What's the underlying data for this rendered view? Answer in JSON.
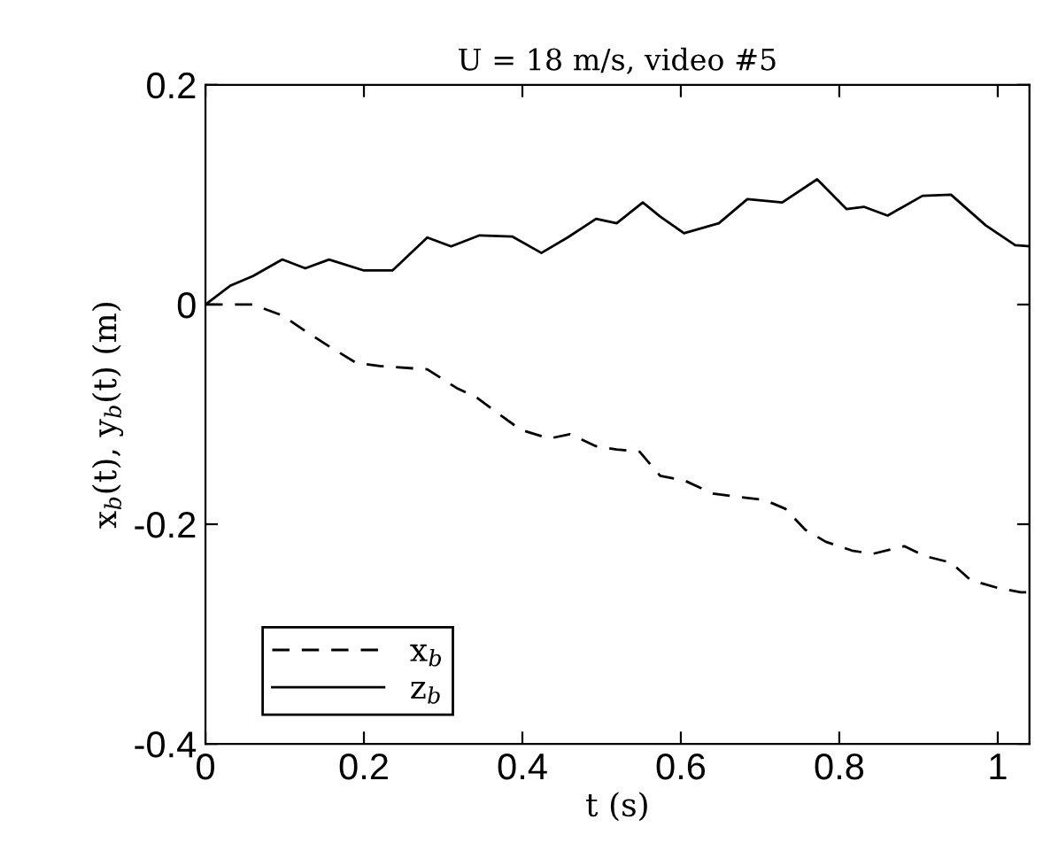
{
  "chart_data": {
    "type": "line",
    "title": "U = 18 m/s, video #5",
    "xlabel": "t (s)",
    "ylabel": "x$_{b}$(t), y$_{b}$(t) (m)",
    "xlim": [
      0,
      1.04
    ],
    "xticks": [
      0,
      0.2,
      0.4,
      0.6,
      0.8,
      1
    ],
    "ylim": [
      -0.4,
      0.2
    ],
    "yticks": [
      -0.4,
      -0.2,
      0,
      0.2
    ],
    "grid": false,
    "legend": "bottom left",
    "series": [
      {
        "name": "x$_{b}$",
        "color": "#000000",
        "line_style": "dashed",
        "x": [
          0,
          0.06,
          0.097,
          0.13,
          0.156,
          0.19,
          0.22,
          0.28,
          0.317,
          0.343,
          0.369,
          0.398,
          0.434,
          0.46,
          0.493,
          0.519,
          0.548,
          0.574,
          0.604,
          0.64,
          0.67,
          0.706,
          0.732,
          0.757,
          0.783,
          0.816,
          0.842,
          0.882,
          0.908,
          0.941,
          0.966,
          1.0,
          1.029,
          1.04
        ],
        "values": [
          0,
          0,
          -0.01,
          -0.026,
          -0.038,
          -0.053,
          -0.056,
          -0.059,
          -0.076,
          -0.085,
          -0.099,
          -0.114,
          -0.122,
          -0.118,
          -0.129,
          -0.132,
          -0.134,
          -0.156,
          -0.16,
          -0.172,
          -0.175,
          -0.178,
          -0.186,
          -0.205,
          -0.216,
          -0.224,
          -0.227,
          -0.22,
          -0.229,
          -0.235,
          -0.251,
          -0.258,
          -0.262,
          -0.262
        ]
      },
      {
        "name": "z$_{b}$",
        "color": "#000000",
        "line_style": "solid",
        "x": [
          0,
          0.031,
          0.06,
          0.097,
          0.126,
          0.156,
          0.2,
          0.236,
          0.28,
          0.31,
          0.346,
          0.387,
          0.424,
          0.457,
          0.493,
          0.519,
          0.552,
          0.574,
          0.604,
          0.648,
          0.684,
          0.728,
          0.772,
          0.809,
          0.831,
          0.861,
          0.905,
          0.941,
          0.985,
          1.022,
          1.04
        ],
        "values": [
          0,
          0.017,
          0.026,
          0.041,
          0.033,
          0.041,
          0.031,
          0.031,
          0.061,
          0.053,
          0.063,
          0.062,
          0.047,
          0.061,
          0.078,
          0.074,
          0.093,
          0.08,
          0.065,
          0.074,
          0.096,
          0.093,
          0.114,
          0.087,
          0.089,
          0.081,
          0.099,
          0.1,
          0.072,
          0.054,
          0.053
        ]
      }
    ]
  }
}
